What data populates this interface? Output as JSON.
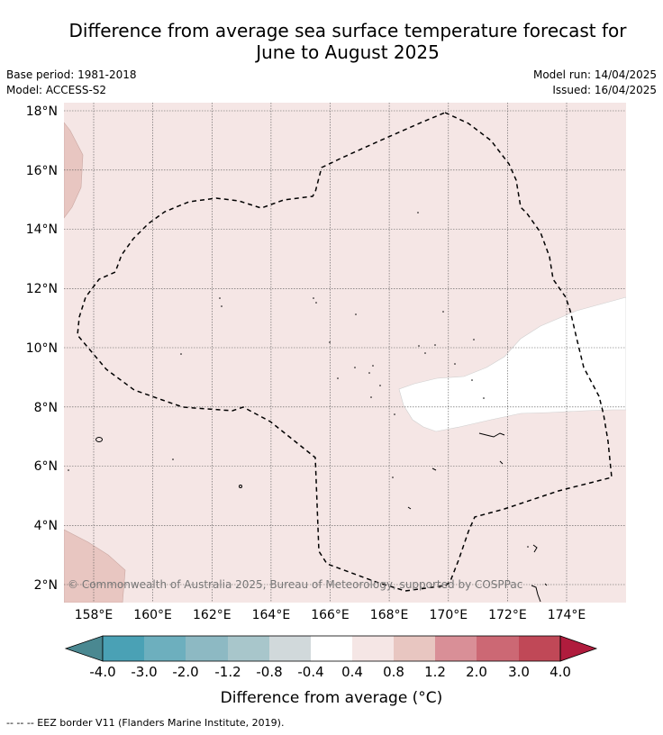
{
  "title_line1": "Difference from average sea surface temperature forecast for",
  "title_line2": "June to August 2025",
  "base_period": "Base period: 1981-2018",
  "model": "Model: ACCESS-S2",
  "model_run": "Model run: 14/04/2025",
  "issued": "Issued: 16/04/2025",
  "map": {
    "lat_labels": [
      "18°N",
      "16°N",
      "14°N",
      "12°N",
      "10°N",
      "8°N",
      "6°N",
      "4°N",
      "2°N"
    ],
    "lon_labels": [
      "158°E",
      "160°E",
      "162°E",
      "164°E",
      "166°E",
      "168°E",
      "170°E",
      "172°E",
      "174°E"
    ],
    "copyright": "© Commonwealth of Australia 2025, Bureau of Meteorology, supported by COSPPac",
    "colors": {
      "background_anomaly": "#f5e6e5",
      "land_anomaly": "#e8c6c1",
      "neutral": "#ffffff",
      "eez_border": "#000000"
    }
  },
  "colorbar": {
    "tick_labels": [
      "-4.0",
      "-3.0",
      "-2.0",
      "-1.2",
      "-0.8",
      "-0.4",
      "0.4",
      "0.8",
      "1.2",
      "2.0",
      "3.0",
      "4.0"
    ],
    "colors": [
      "#4a8891",
      "#4aa1b5",
      "#6dafbe",
      "#8db9c3",
      "#a8c6cb",
      "#d1d9db",
      "#ffffff",
      "#f5e6e5",
      "#e8c6c1",
      "#d98f97",
      "#cc6874",
      "#c04857",
      "#b01c3d"
    ],
    "label": "Difference from average (°C)"
  },
  "footer": "--  --  -- EEZ border V11 (Flanders Marine Institute, 2019)."
}
